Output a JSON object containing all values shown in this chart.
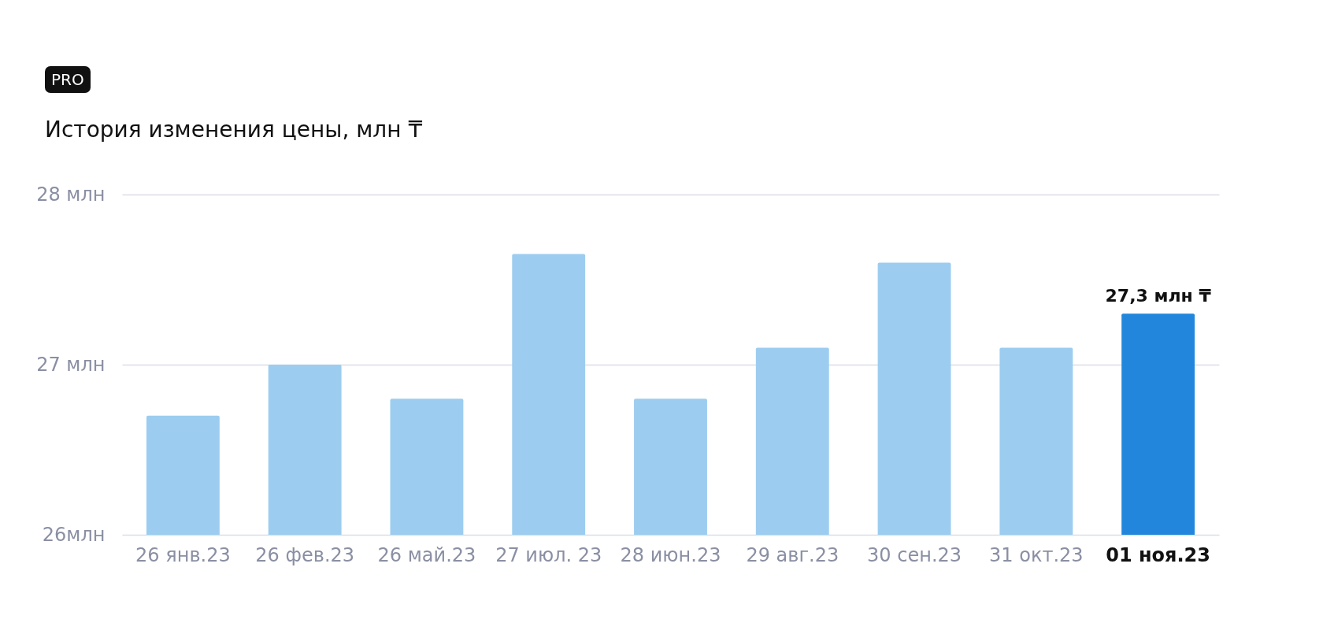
{
  "chart_data": {
    "type": "bar",
    "title": "История изменения цены, млн ₸",
    "annotations": [
      "PRO"
    ],
    "categories": [
      "26 янв.23",
      "26 фев.23",
      "26 май.23",
      "27 июл. 23",
      "28 июн.23",
      "29 авг.23",
      "30 сен.23",
      "31 окт.23",
      "01 ноя.23"
    ],
    "values": [
      26.7,
      27.0,
      26.8,
      27.65,
      26.8,
      27.1,
      27.6,
      27.1,
      27.3
    ],
    "value_labels": [
      null,
      null,
      null,
      null,
      null,
      null,
      null,
      null,
      "27,3 млн ₸"
    ],
    "colors": [
      "#9ccdf0",
      "#9ccdf0",
      "#9ccdf0",
      "#9ccdf0",
      "#9ccdf0",
      "#9ccdf0",
      "#9ccdf0",
      "#9ccdf0",
      "#2287dc"
    ],
    "ylim": [
      26,
      28
    ],
    "yticks": [
      {
        "value": 26,
        "label": "26млн"
      },
      {
        "value": 27,
        "label": "27 млн"
      },
      {
        "value": 28,
        "label": "28 млн"
      }
    ],
    "grid": "y",
    "legend": false
  }
}
